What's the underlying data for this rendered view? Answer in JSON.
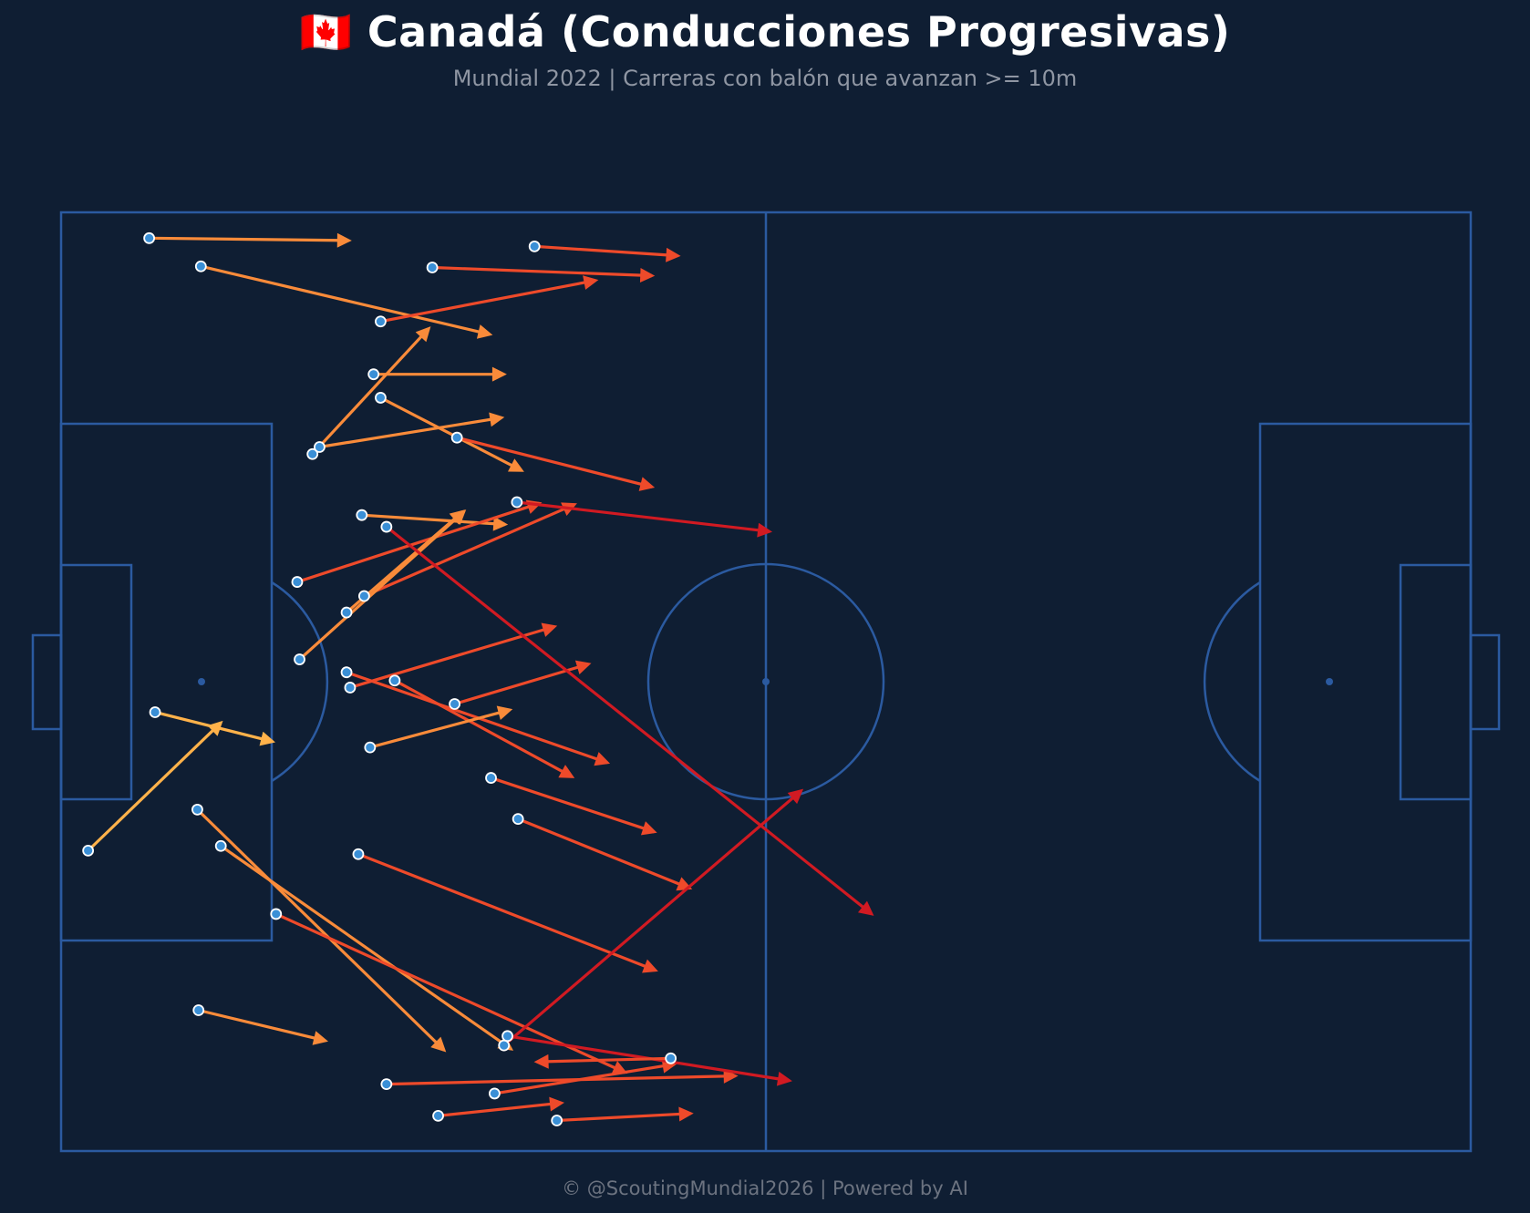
{
  "header": {
    "title": "🇨🇦 Canadá (Conducciones Progresivas)",
    "subtitle": "Mundial 2022 | Carreras con balón que avanzan >= 10m"
  },
  "footer": {
    "text": "© @ScoutingMundial2026 | Powered by AI"
  },
  "colors": {
    "background": "#0f1e33",
    "pitch_lines": "#2b5aa0",
    "start_marker": "#3a8fd6",
    "arrow_scale": [
      "#ffb24a",
      "#f98b3a",
      "#ee4a2a",
      "#d11a22",
      "#b3082a",
      "#8a0024"
    ]
  },
  "chart_data": {
    "type": "scatter",
    "xlim": [
      0,
      120
    ],
    "ylim": [
      0,
      80
    ],
    "series": [
      {
        "values": [
          {
            "x": 7.5,
            "y": 2.2,
            "x2": 24.5,
            "y2": 2.4
          },
          {
            "x": 11.9,
            "y": 4.6,
            "x2": 36.5,
            "y2": 10.4
          },
          {
            "x": 27.2,
            "y": 9.3,
            "x2": 45.5,
            "y2": 5.8
          },
          {
            "x": 31.6,
            "y": 4.7,
            "x2": 50.3,
            "y2": 5.4
          },
          {
            "x": 40.3,
            "y": 2.9,
            "x2": 52.5,
            "y2": 3.7
          },
          {
            "x": 26.6,
            "y": 13.8,
            "x2": 37.7,
            "y2": 13.8
          },
          {
            "x": 27.2,
            "y": 15.8,
            "x2": 39.2,
            "y2": 22.0
          },
          {
            "x": 21.4,
            "y": 20.6,
            "x2": 31.3,
            "y2": 9.9
          },
          {
            "x": 22.0,
            "y": 20.0,
            "x2": 37.5,
            "y2": 17.5
          },
          {
            "x": 33.7,
            "y": 19.2,
            "x2": 50.3,
            "y2": 23.4
          },
          {
            "x": 25.6,
            "y": 25.8,
            "x2": 37.8,
            "y2": 26.6
          },
          {
            "x": 20.1,
            "y": 31.5,
            "x2": 40.7,
            "y2": 24.8
          },
          {
            "x": 25.8,
            "y": 32.7,
            "x2": 43.7,
            "y2": 24.9
          },
          {
            "x": 38.8,
            "y": 24.7,
            "x2": 60.3,
            "y2": 27.2
          },
          {
            "x": 24.3,
            "y": 34.1,
            "x2": 34.2,
            "y2": 25.5
          },
          {
            "x": 20.3,
            "y": 38.1,
            "x2": 34.3,
            "y2": 25.5
          },
          {
            "x": 24.3,
            "y": 39.2,
            "x2": 46.5,
            "y2": 46.9
          },
          {
            "x": 24.6,
            "y": 40.5,
            "x2": 42.0,
            "y2": 35.3
          },
          {
            "x": 28.4,
            "y": 39.9,
            "x2": 43.5,
            "y2": 48.1
          },
          {
            "x": 26.3,
            "y": 45.6,
            "x2": 38.2,
            "y2": 42.4
          },
          {
            "x": 33.5,
            "y": 41.9,
            "x2": 44.9,
            "y2": 38.5
          },
          {
            "x": 8.0,
            "y": 42.6,
            "x2": 18.0,
            "y2": 45.1
          },
          {
            "x": 2.3,
            "y": 54.4,
            "x2": 13.6,
            "y2": 43.5
          },
          {
            "x": 11.6,
            "y": 50.9,
            "x2": 32.6,
            "y2": 71.4
          },
          {
            "x": 13.6,
            "y": 54.0,
            "x2": 38.3,
            "y2": 71.3
          },
          {
            "x": 36.6,
            "y": 48.2,
            "x2": 50.5,
            "y2": 52.8
          },
          {
            "x": 38.9,
            "y": 51.7,
            "x2": 53.5,
            "y2": 57.6
          },
          {
            "x": 25.3,
            "y": 54.7,
            "x2": 50.6,
            "y2": 64.6
          },
          {
            "x": 18.3,
            "y": 59.8,
            "x2": 48.0,
            "y2": 73.3
          },
          {
            "x": 11.7,
            "y": 68.0,
            "x2": 22.5,
            "y2": 70.6
          },
          {
            "x": 27.7,
            "y": 74.3,
            "x2": 57.4,
            "y2": 73.6
          },
          {
            "x": 36.9,
            "y": 75.1,
            "x2": 52.2,
            "y2": 72.6
          },
          {
            "x": 32.1,
            "y": 77.0,
            "x2": 42.6,
            "y2": 75.9
          },
          {
            "x": 42.2,
            "y": 77.4,
            "x2": 53.6,
            "y2": 76.8
          },
          {
            "x": 27.7,
            "y": 26.8,
            "x2": 69.0,
            "y2": 59.8
          },
          {
            "x": 37.7,
            "y": 71.0,
            "x2": 63.0,
            "y2": 49.3
          },
          {
            "x": 38.0,
            "y": 70.2,
            "x2": 62.0,
            "y2": 74.0
          },
          {
            "x": 51.9,
            "y": 72.1,
            "x2": 40.5,
            "y2": 72.4
          }
        ]
      }
    ]
  }
}
